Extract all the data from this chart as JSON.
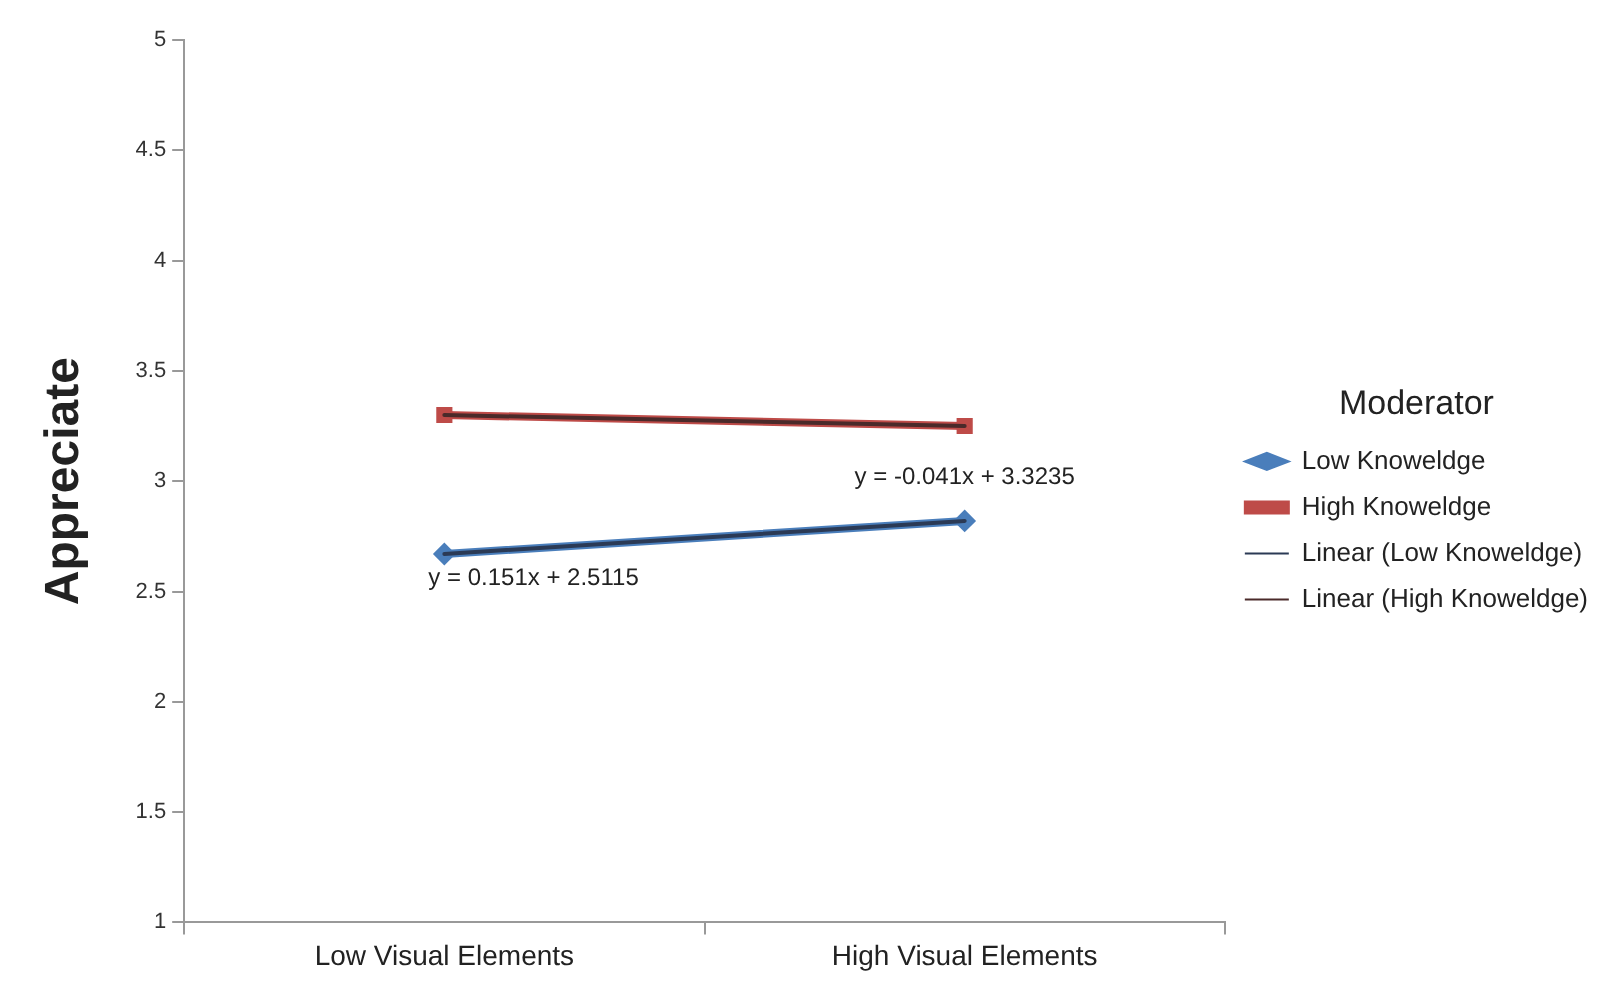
{
  "chart_data": {
    "type": "line",
    "ylabel": "Appreciate",
    "legend_title": "Moderator",
    "categories": [
      "Low Visual Elements",
      "High Visual Elements"
    ],
    "series": [
      {
        "name": "Low Knoweldge",
        "color": "#4a7ebb",
        "values": [
          2.67,
          2.82
        ],
        "marker": "diamond"
      },
      {
        "name": "High Knoweldge",
        "color": "#be4b48",
        "values": [
          3.3,
          3.25
        ],
        "marker": "square"
      },
      {
        "name": "Linear (Low Knoweldge)",
        "color": "#2b3a55",
        "values": [
          2.67,
          2.82
        ],
        "marker": "none"
      },
      {
        "name": "Linear (High Knoweldge)",
        "color": "#4a2a2a",
        "values": [
          3.3,
          3.25
        ],
        "marker": "none"
      }
    ],
    "annotations": [
      "y = 0.151x + 2.5115",
      "y = -0.041x + 3.3235"
    ],
    "ylim": [
      1,
      5
    ],
    "yticks": [
      1,
      1.5,
      2,
      2.5,
      3,
      3.5,
      4,
      4.5,
      5
    ],
    "grid": false,
    "legend": "right"
  }
}
